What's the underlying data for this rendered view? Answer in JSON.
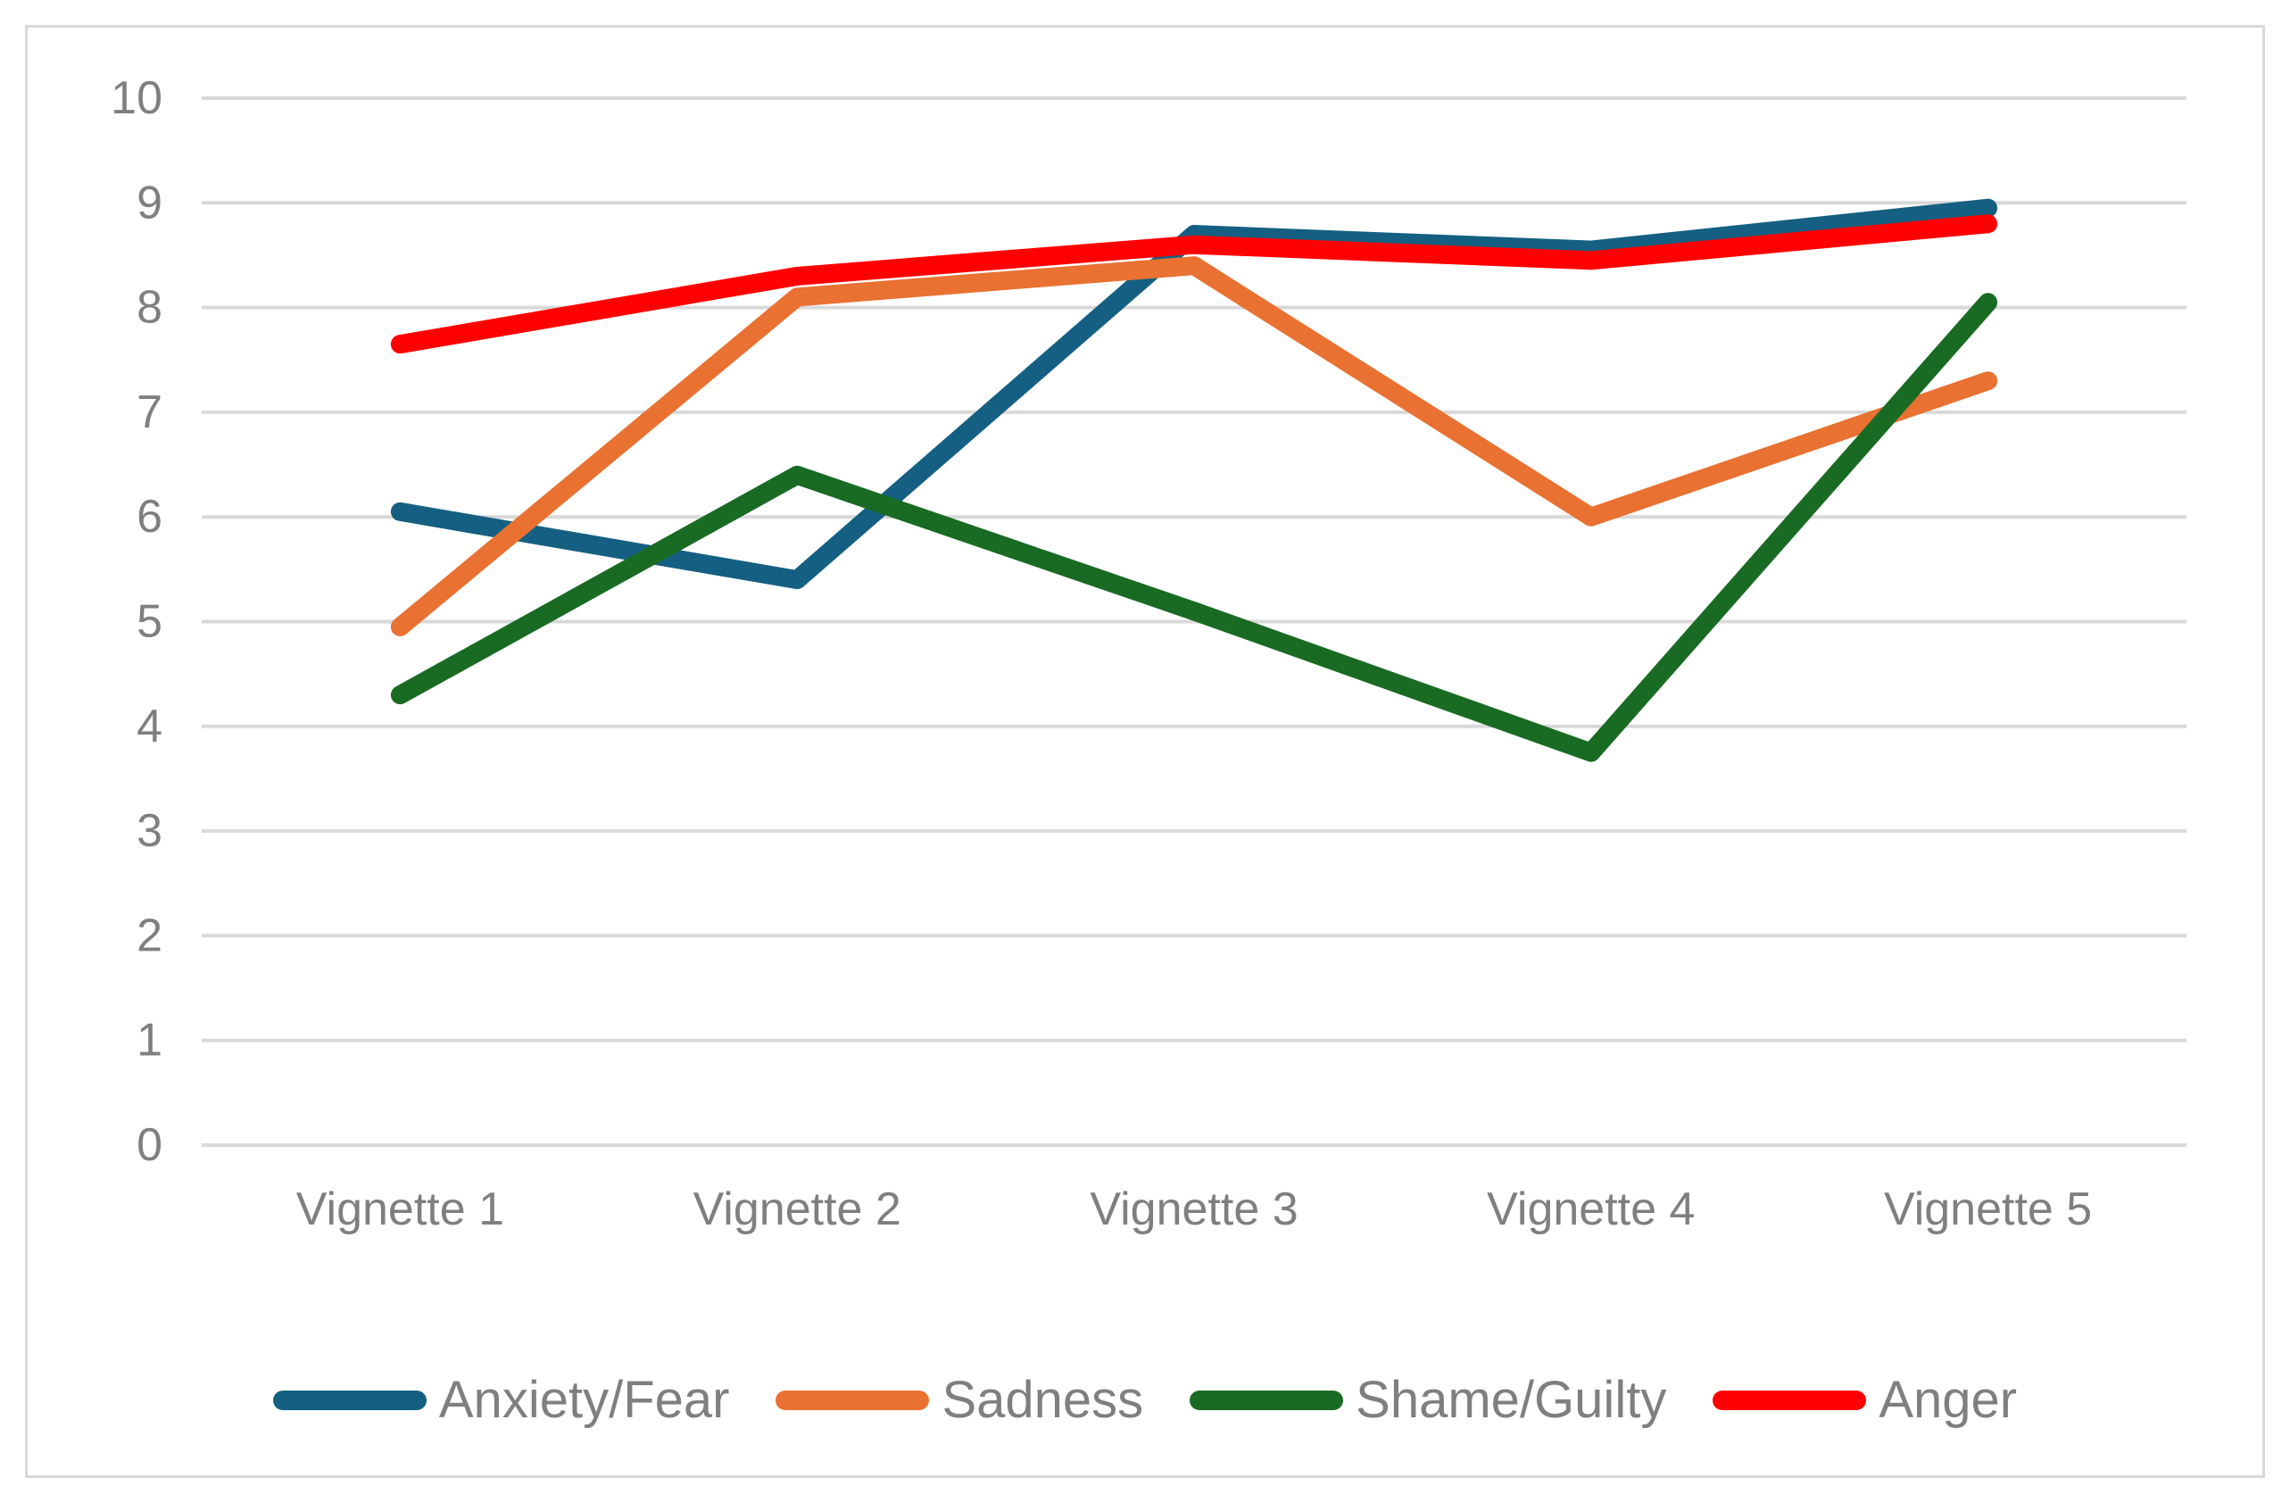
{
  "chart_data": {
    "type": "line",
    "title": "",
    "xlabel": "",
    "ylabel": "",
    "categories": [
      "Vignette 1",
      "Vignette 2",
      "Vignette 3",
      "Vignette 4",
      "Vignette 5"
    ],
    "series": [
      {
        "name": "Anxiety/Fear",
        "color": "#156082",
        "values": [
          6.05,
          5.4,
          8.7,
          8.55,
          8.95
        ]
      },
      {
        "name": "Sadness",
        "color": "#E97132",
        "values": [
          4.95,
          8.1,
          8.4,
          6.0,
          7.3
        ]
      },
      {
        "name": "Shame/Guilty",
        "color": "#196B24",
        "values": [
          4.3,
          6.4,
          5.1,
          3.75,
          8.05
        ]
      },
      {
        "name": "Anger",
        "color": "#FF0000",
        "values": [
          7.65,
          8.3,
          8.6,
          8.45,
          8.8
        ]
      }
    ],
    "ylim": [
      0,
      10
    ],
    "y_ticks": [
      "0",
      "1",
      "2",
      "3",
      "4",
      "5",
      "6",
      "7",
      "8",
      "9",
      "10"
    ],
    "grid": true,
    "legend_position": "bottom",
    "colors": {
      "gridline": "#D9D9D9",
      "frame_border": "#D9D9D9",
      "axis_text": "#7F7F7F",
      "legend_text": "#7F7F7F",
      "background": "#FFFFFF"
    }
  }
}
